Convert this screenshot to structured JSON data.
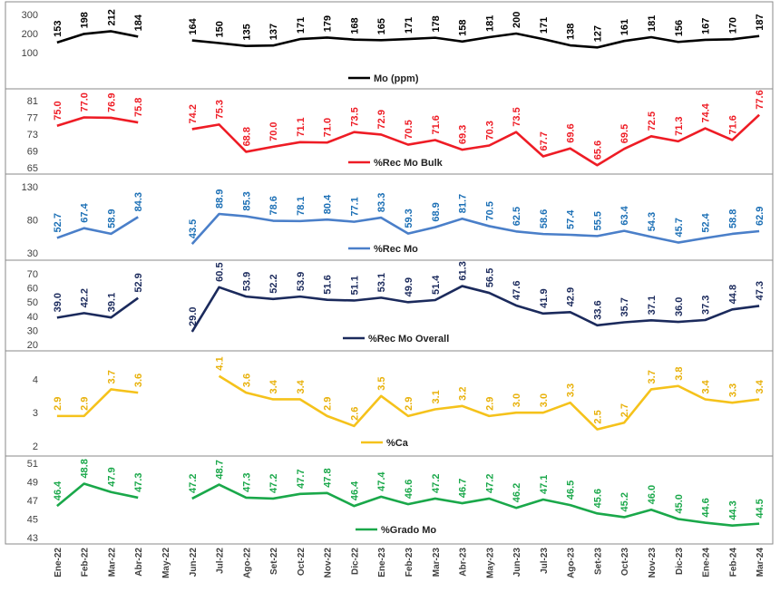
{
  "chart_data": {
    "type": "line",
    "x_labels": [
      "Ene-22",
      "Feb-22",
      "Mar-22",
      "Abr-22",
      "May-22",
      "Jun-22",
      "Jul-22",
      "Ago-22",
      "Set-22",
      "Oct-22",
      "Nov-22",
      "Dic-22",
      "Ene-23",
      "Feb-23",
      "Mar-23",
      "Abr-23",
      "May-23",
      "Jun-23",
      "Jul-23",
      "Ago-23",
      "Set-23",
      "Oct-23",
      "Nov-23",
      "Dic-23",
      "Ene-24",
      "Feb-24",
      "Mar-24"
    ],
    "panels": [
      {
        "legend": "Mo (ppm)",
        "color": "#000000",
        "yticks": [
          "300",
          "200",
          "100"
        ],
        "ylim": [
          100,
          300
        ],
        "values": [
          153,
          198,
          212,
          184,
          null,
          164,
          150,
          135,
          137,
          171,
          179,
          168,
          165,
          171,
          178,
          158,
          181,
          200,
          171,
          138,
          127,
          161,
          181,
          156,
          167,
          170,
          187
        ],
        "labels": [
          "153",
          "198",
          "212",
          "184",
          null,
          "164",
          "150",
          "135",
          "137",
          "171",
          "179",
          "168",
          "165",
          "171",
          "178",
          "158",
          "181",
          "200",
          "171",
          "138",
          "127",
          "161",
          "181",
          "156",
          "167",
          "170",
          "187"
        ]
      },
      {
        "legend": "%Rec Mo Bulk",
        "color": "#ee1c25",
        "yticks": [
          "81",
          "77",
          "73",
          "69",
          "65"
        ],
        "ylim": [
          65,
          81
        ],
        "values": [
          75.0,
          77.0,
          76.9,
          75.8,
          null,
          74.2,
          75.3,
          68.8,
          70.0,
          71.1,
          71.0,
          73.5,
          72.9,
          70.5,
          71.6,
          69.3,
          70.3,
          73.5,
          67.7,
          69.6,
          65.6,
          69.5,
          72.5,
          71.3,
          74.4,
          71.6,
          77.6
        ],
        "labels": [
          "75.0",
          "77.0",
          "76.9",
          "75.8",
          null,
          "74.2",
          "75.3",
          "68.8",
          "70.0",
          "71.1",
          "71.0",
          "73.5",
          "72.9",
          "70.5",
          "71.6",
          "69.3",
          "70.3",
          "73.5",
          "67.7",
          "69.6",
          "65.6",
          "69.5",
          "72.5",
          "71.3",
          "74.4",
          "71.6",
          "77.6"
        ]
      },
      {
        "legend": "%Rec Mo",
        "color": "#4a7fc9",
        "label_color": "#1b6fb5",
        "yticks": [
          "130",
          "80",
          "30"
        ],
        "ylim": [
          30,
          130
        ],
        "values": [
          52.7,
          67.4,
          58.9,
          84.3,
          null,
          43.5,
          88.9,
          85.3,
          78.6,
          78.1,
          80.4,
          77.1,
          83.3,
          59.3,
          68.9,
          81.7,
          70.5,
          62.5,
          58.6,
          57.4,
          55.5,
          63.4,
          54.3,
          45.7,
          52.4,
          58.8,
          62.9
        ],
        "labels": [
          "52.7",
          "67.4",
          "58.9",
          "84.3",
          null,
          "43.5",
          "88.9",
          "85.3",
          "78.6",
          "78.1",
          "80.4",
          "77.1",
          "83.3",
          "59.3",
          "68.9",
          "81.7",
          "70.5",
          "62.5",
          "58.6",
          "57.4",
          "55.5",
          "63.4",
          "54.3",
          "45.7",
          "52.4",
          "58.8",
          "62.9"
        ]
      },
      {
        "legend": "%Rec Mo Overall",
        "color": "#1b2a5c",
        "yticks": [
          "70",
          "60",
          "50",
          "40",
          "30",
          "20"
        ],
        "ylim": [
          20,
          70
        ],
        "values": [
          39.0,
          42.2,
          39.1,
          52.9,
          null,
          29.0,
          60.5,
          53.9,
          52.2,
          53.9,
          51.6,
          51.1,
          53.1,
          49.9,
          51.4,
          61.3,
          56.5,
          47.6,
          41.9,
          42.9,
          33.6,
          35.7,
          37.1,
          36.0,
          37.3,
          44.8,
          47.3
        ],
        "labels": [
          "39.0",
          "42.2",
          "39.1",
          "52.9",
          null,
          "29.0",
          "60.5",
          "53.9",
          "52.2",
          "53.9",
          "51.6",
          "51.1",
          "53.1",
          "49.9",
          "51.4",
          "61.3",
          "56.5",
          "47.6",
          "41.9",
          "42.9",
          "33.6",
          "35.7",
          "37.1",
          "36.0",
          "37.3",
          "44.8",
          "47.3"
        ]
      },
      {
        "legend": "%Ca",
        "color": "#f5c21b",
        "label_color": "#e8b10a",
        "yticks": [
          "4",
          "3",
          "2"
        ],
        "ylim": [
          2,
          4.5
        ],
        "values": [
          2.9,
          2.9,
          3.7,
          3.6,
          null,
          4.1,
          3.6,
          3.4,
          3.4,
          2.9,
          2.6,
          3.5,
          2.9,
          3.1,
          3.2,
          2.9,
          3.0,
          3.0,
          3.3,
          2.5,
          2.7,
          3.7,
          3.8,
          3.4,
          3.3,
          3.4
        ],
        "value_index": [
          0,
          1,
          2,
          3,
          null,
          6,
          7,
          8,
          9,
          10,
          11,
          12,
          13,
          14,
          15,
          16,
          17,
          18,
          19,
          20,
          21,
          22,
          23,
          24,
          25,
          26
        ],
        "labels": [
          "2.9",
          "2.9",
          "3.7",
          "3.6",
          null,
          "4.1",
          "3.6",
          "3.4",
          "3.4",
          "2.9",
          "2.6",
          "3.5",
          "2.9",
          "3.1",
          "3.2",
          "2.9",
          "3.0",
          "3.0",
          "3.3",
          "2.5",
          "2.7",
          "3.7",
          "3.8",
          "3.4",
          "3.3",
          "3.4"
        ]
      },
      {
        "legend": "%Grado Mo",
        "color": "#1aa84a",
        "yticks": [
          "51",
          "49",
          "47",
          "45",
          "43"
        ],
        "ylim": [
          43,
          51
        ],
        "values": [
          46.4,
          48.8,
          47.9,
          47.3,
          null,
          47.2,
          48.7,
          47.3,
          47.2,
          47.7,
          47.8,
          46.4,
          47.4,
          46.6,
          47.2,
          46.7,
          47.2,
          46.2,
          47.1,
          46.5,
          45.6,
          45.2,
          46.0,
          45.0,
          44.6,
          44.3,
          44.5
        ],
        "labels": [
          "46.4",
          "48.8",
          "47.9",
          "47.3",
          null,
          "47.2",
          "48.7",
          "47.3",
          "47.2",
          "47.7",
          "47.8",
          "46.4",
          "47.4",
          "46.6",
          "47.2",
          "46.7",
          "47.2",
          "46.2",
          "47.1",
          "46.5",
          "45.6",
          "45.2",
          "46.0",
          "45.0",
          "44.6",
          "44.3",
          "44.5"
        ]
      }
    ]
  }
}
